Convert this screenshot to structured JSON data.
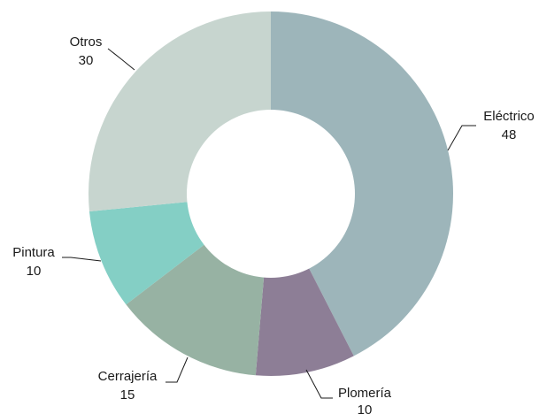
{
  "chart_data": {
    "type": "pie",
    "donut": true,
    "title": "",
    "slices": [
      {
        "label": "Eléctrico",
        "value": 48,
        "value_label": "48",
        "color": "#9db5ba"
      },
      {
        "label": "Plomería",
        "value": 10,
        "value_label": "10",
        "color": "#8d7e96"
      },
      {
        "label": "Cerrajería",
        "value": 15,
        "value_label": "15",
        "color": "#97b2a3"
      },
      {
        "label": "Pintura",
        "value": 10,
        "value_label": "10",
        "color": "#84cfc5"
      },
      {
        "label": "Otros",
        "value": 30,
        "value_label": "30",
        "color": "#c7d5cf"
      }
    ],
    "legend": "none"
  }
}
